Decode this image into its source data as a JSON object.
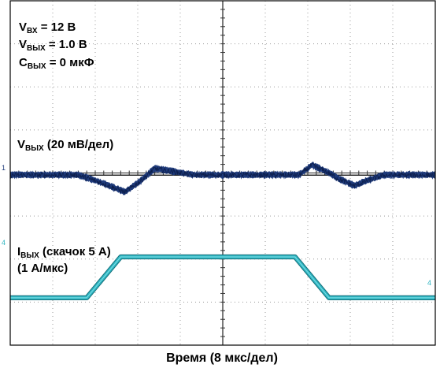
{
  "chart_data": {
    "type": "line",
    "title": "",
    "xlabel": "Время (8 мкс/дел)",
    "ylabel": "",
    "grid": true,
    "grid_divisions": {
      "x": 10,
      "y": 8
    },
    "conditions": [
      {
        "sym": "V",
        "sub": "ВХ",
        "rest": " = 12 В"
      },
      {
        "sym": "V",
        "sub": "ВЫХ",
        "rest": " = 1.0 В"
      },
      {
        "sym": "C",
        "sub": "ВЫХ",
        "rest": " = 0 мкФ"
      }
    ],
    "x_divisions": [
      0,
      10
    ],
    "series": [
      {
        "name": "V_ВЫХ",
        "label_sym": "V",
        "label_sub": "ВЫХ",
        "label_rest": " (20 мВ/дел)",
        "label_line2": "",
        "channel_marker": "1",
        "color": "#1e3a7a",
        "baseline_div": 3.95,
        "noise_div": 0.09,
        "x_div": [
          0,
          1.6,
          2.2,
          2.7,
          3.05,
          3.4,
          3.9,
          4.3,
          6.8,
          7.1,
          7.45,
          7.75,
          8.1,
          8.4,
          8.8,
          10
        ],
        "y_div": [
          3.95,
          3.95,
          3.75,
          3.55,
          3.8,
          4.1,
          4.02,
          3.95,
          3.95,
          4.18,
          4.02,
          3.85,
          3.7,
          3.82,
          3.95,
          3.95
        ]
      },
      {
        "name": "I_ВЫХ",
        "label_sym": "I",
        "label_sub": "ВЫХ",
        "label_rest": " (скачок 5 А)",
        "label_line2": "(1 А/мкс)",
        "channel_marker": "4",
        "color": "#2fb5c1",
        "baseline_div": 0,
        "noise_div": 0.03,
        "x_div": [
          0,
          1.8,
          2.6,
          6.7,
          7.5,
          10
        ],
        "y_div": [
          1.1,
          1.1,
          2.05,
          2.05,
          1.1,
          1.1
        ]
      }
    ]
  }
}
